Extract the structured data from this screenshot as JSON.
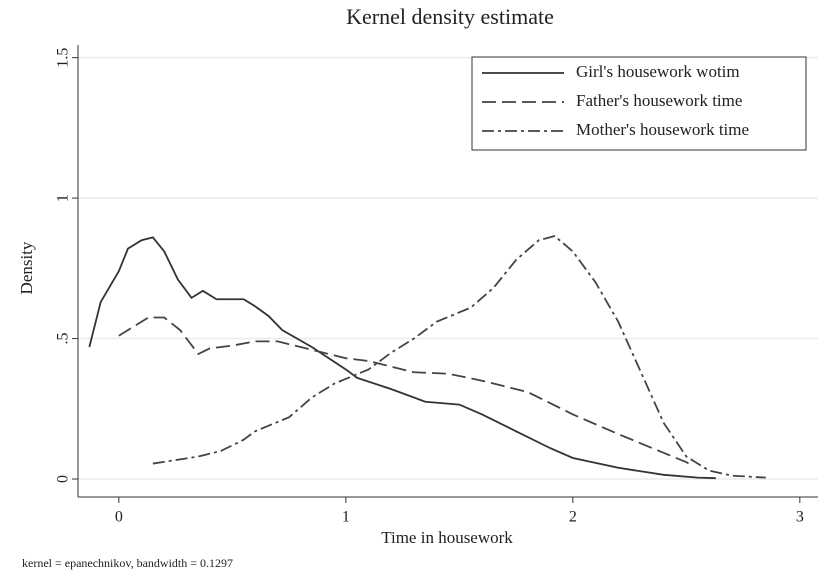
{
  "chart_data": {
    "type": "line",
    "title": "Kernel density estimate",
    "xlabel": "Time in housework",
    "ylabel": "Density",
    "note": "kernel = epanechnikov, bandwidth = 0.1297",
    "xlim": [
      -0.18,
      3.08
    ],
    "ylim": [
      -0.064,
      1.545
    ],
    "xticks": [
      0,
      1,
      2,
      3
    ],
    "yticks": [
      0,
      {
        "value": 0.5,
        "label": ".5"
      },
      1,
      1.5
    ],
    "grid": true,
    "legend": "upper right",
    "series": [
      {
        "name": "Girl's housework wotim",
        "color": "#333333",
        "dash": "solid",
        "x": [
          -0.13,
          -0.08,
          0,
          0.04,
          0.1,
          0.15,
          0.2,
          0.26,
          0.32,
          0.37,
          0.43,
          0.55,
          0.6,
          0.66,
          0.72,
          0.85,
          1.0,
          1.05,
          1.2,
          1.35,
          1.5,
          1.6,
          1.75,
          1.9,
          2.0,
          2.2,
          2.4,
          2.55,
          2.63
        ],
        "values": [
          0.47,
          0.63,
          0.74,
          0.82,
          0.85,
          0.86,
          0.81,
          0.71,
          0.645,
          0.67,
          0.64,
          0.64,
          0.615,
          0.58,
          0.53,
          0.47,
          0.39,
          0.36,
          0.32,
          0.275,
          0.265,
          0.23,
          0.17,
          0.11,
          0.075,
          0.04,
          0.015,
          0.005,
          0.003
        ]
      },
      {
        "name": "Father's housework time",
        "color": "#444444",
        "dash": "dash",
        "x": [
          0,
          0.08,
          0.13,
          0.2,
          0.27,
          0.35,
          0.4,
          0.5,
          0.6,
          0.7,
          0.85,
          1.0,
          1.1,
          1.3,
          1.45,
          1.6,
          1.8,
          2.0,
          2.2,
          2.35,
          2.5,
          2.53
        ],
        "values": [
          0.51,
          0.55,
          0.575,
          0.575,
          0.53,
          0.445,
          0.465,
          0.475,
          0.49,
          0.49,
          0.46,
          0.43,
          0.42,
          0.38,
          0.375,
          0.35,
          0.31,
          0.23,
          0.16,
          0.11,
          0.06,
          0.045
        ]
      },
      {
        "name": "Mother's housework time",
        "color": "#444444",
        "dash": "dashdot",
        "x": [
          0.15,
          0.35,
          0.45,
          0.55,
          0.6,
          0.75,
          0.85,
          0.95,
          1.1,
          1.2,
          1.3,
          1.4,
          1.55,
          1.65,
          1.75,
          1.85,
          1.92,
          2.0,
          2.1,
          2.2,
          2.3,
          2.4,
          2.5,
          2.6,
          2.7,
          2.85
        ],
        "values": [
          0.055,
          0.08,
          0.1,
          0.14,
          0.17,
          0.22,
          0.29,
          0.34,
          0.39,
          0.45,
          0.5,
          0.56,
          0.61,
          0.68,
          0.78,
          0.85,
          0.865,
          0.81,
          0.7,
          0.56,
          0.38,
          0.2,
          0.08,
          0.03,
          0.012,
          0.005
        ]
      }
    ]
  }
}
